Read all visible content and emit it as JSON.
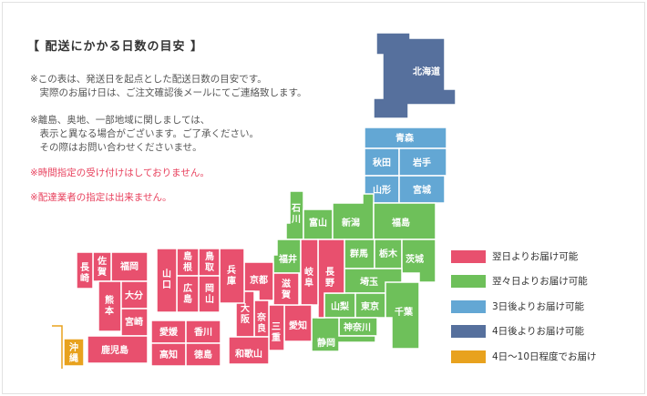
{
  "title": "【 配送にかかる日数の目安 】",
  "notes": [
    "※この表は、発送日を起点とした配送日数の目安です。\n　実際のお届け日は、ご注文確認後メールにてご連絡致します。",
    "※離島、奥地、一部地域に関しましては、\n　表示と異なる場合がございます。ご了承ください。\n　その際はお問い合わせくださいませ。"
  ],
  "warnings": [
    "※時間指定の受け付けはしておりません。",
    "※配達業者の指定は出来ません。"
  ],
  "colors": {
    "day1": "#e8506e",
    "day2": "#6ec05a",
    "day3": "#63a7d4",
    "day4": "#56709d",
    "day10": "#e8a21e"
  },
  "legend": [
    {
      "label": "翌日よりお届け可能",
      "color": "#e8506e"
    },
    {
      "label": "翌々日よりお届け可能",
      "color": "#6ec05a"
    },
    {
      "label": "3日後よりお届け可能",
      "color": "#63a7d4"
    },
    {
      "label": "4日後よりお届け可能",
      "color": "#56709d"
    },
    {
      "label": "4日〜10日程度でお届け",
      "color": "#e8a21e"
    }
  ],
  "prefectures": {
    "hokkaido": "北海道",
    "aomori": "青森",
    "akita": "秋田",
    "iwate": "岩手",
    "yamagata": "山形",
    "miyagi": "宮城",
    "ishikawa": "石川",
    "toyama": "富山",
    "niigata": "新潟",
    "fukushima": "福島",
    "fukui": "福井",
    "gunma": "群馬",
    "tochigi": "栃木",
    "ibaraki": "茨城",
    "nagano": "長野",
    "gifu": "岐阜",
    "saitama": "埼玉",
    "yamanashi": "山梨",
    "tokyo": "東京",
    "chiba": "千葉",
    "kanagawa": "神奈川",
    "shizuoka": "静岡",
    "aichi": "愛知",
    "shiga": "滋賀",
    "kyoto": "京都",
    "mie": "三重",
    "nara": "奈良",
    "osaka": "大阪",
    "wakayama": "和歌山",
    "hyogo": "兵庫",
    "tottori": "鳥取",
    "okayama": "岡山",
    "shimane": "島根",
    "hiroshima": "広島",
    "yamaguchi": "山口",
    "kagawa": "香川",
    "ehime": "愛媛",
    "tokushima": "徳島",
    "kochi": "高知",
    "fukuoka": "福岡",
    "saga": "佐賀",
    "nagasaki": "長崎",
    "oita": "大分",
    "kumamoto": "熊本",
    "miyazaki": "宮崎",
    "kagoshima": "鹿児島",
    "okinawa": "沖縄"
  }
}
